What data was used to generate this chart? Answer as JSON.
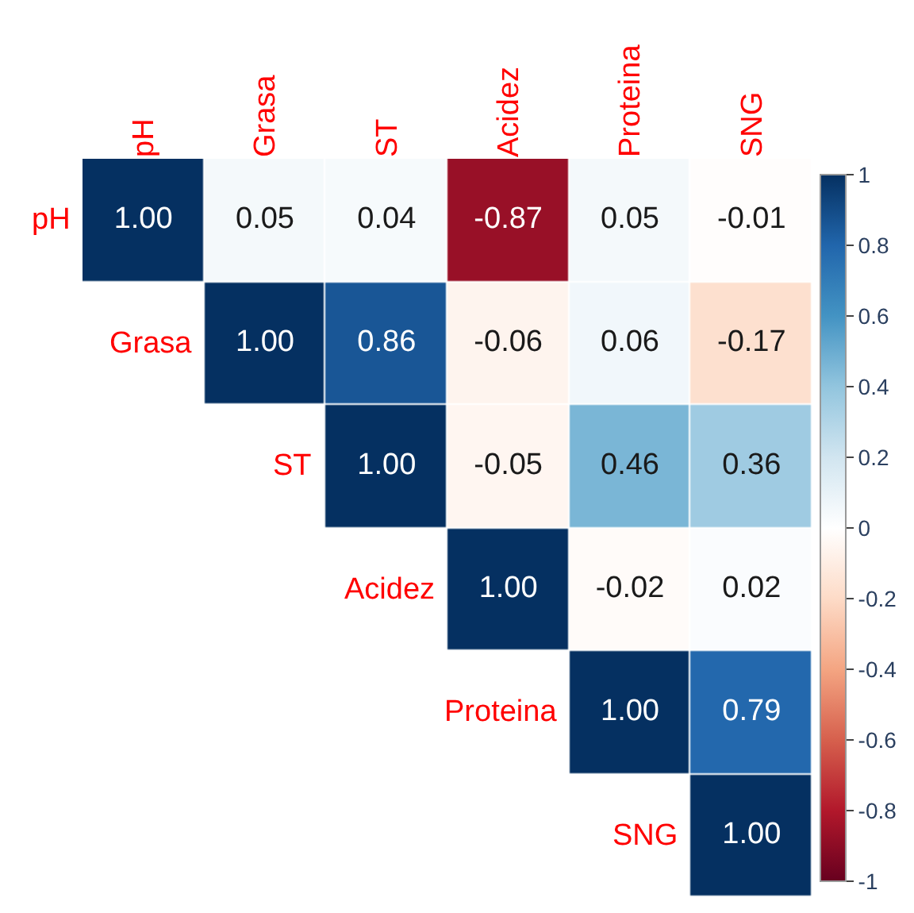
{
  "chart_data": {
    "type": "heatmap",
    "categories": [
      "pH",
      "Grasa",
      "ST",
      "Acidez",
      "Proteina",
      "SNG"
    ],
    "y_categories": [
      "pH",
      "Grasa",
      "ST",
      "Acidez",
      "Proteina",
      "SNG"
    ],
    "cells": [
      [
        1.0,
        0.05,
        0.04,
        -0.87,
        0.05,
        -0.01
      ],
      [
        null,
        1.0,
        0.86,
        -0.06,
        0.06,
        -0.17
      ],
      [
        null,
        null,
        1.0,
        -0.05,
        0.46,
        0.36
      ],
      [
        null,
        null,
        null,
        1.0,
        -0.02,
        0.02
      ],
      [
        null,
        null,
        null,
        null,
        1.0,
        0.79
      ],
      [
        null,
        null,
        null,
        null,
        null,
        1.0
      ]
    ],
    "cell_labels": [
      [
        "1.00",
        "0.05",
        "0.04",
        "-0.87",
        "0.05",
        "-0.01"
      ],
      [
        null,
        "1.00",
        "0.86",
        "-0.06",
        "0.06",
        "-0.17"
      ],
      [
        null,
        null,
        "1.00",
        "-0.05",
        "0.46",
        "0.36"
      ],
      [
        null,
        null,
        null,
        "1.00",
        "-0.02",
        "0.02"
      ],
      [
        null,
        null,
        null,
        null,
        "1.00",
        "0.79"
      ],
      [
        null,
        null,
        null,
        null,
        null,
        "1.00"
      ]
    ],
    "clim": [
      -1,
      1
    ],
    "cticks": [
      -1,
      -0.8,
      -0.6,
      -0.4,
      -0.2,
      0,
      0.2,
      0.4,
      0.6,
      0.8,
      1
    ]
  }
}
